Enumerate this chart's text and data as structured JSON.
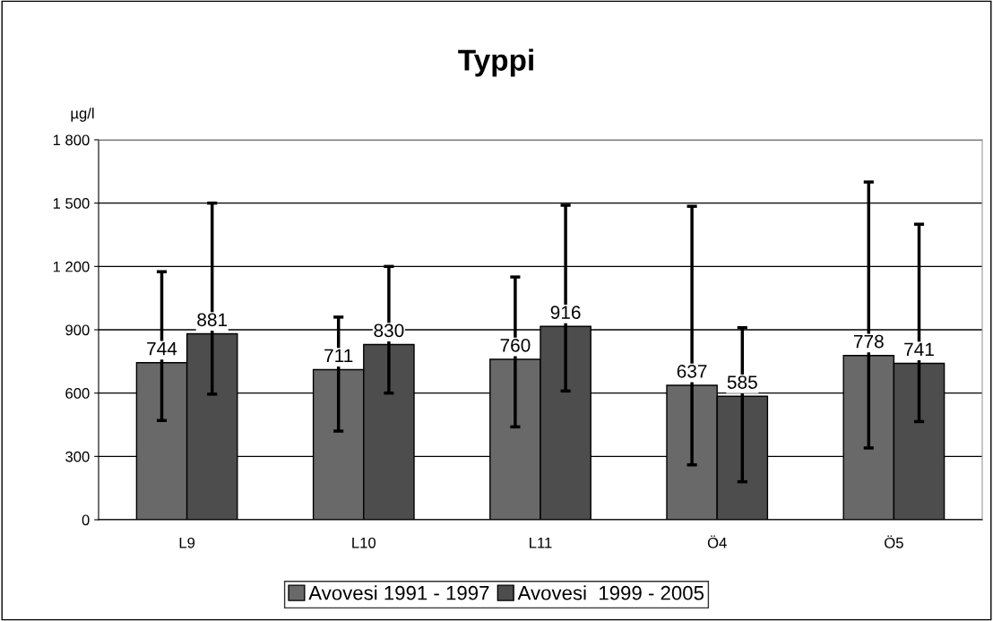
{
  "chart_data": {
    "type": "bar",
    "title": "Typpi",
    "ylabel": "µg/l",
    "categories": [
      "L9",
      "L10",
      "L11",
      "Ö4",
      "Ö5"
    ],
    "series": [
      {
        "name": "Avovesi 1991 - 1997",
        "color": "#696969",
        "values": [
          744,
          711,
          760,
          637,
          778
        ],
        "errors": [
          [
            470,
            1175
          ],
          [
            420,
            960
          ],
          [
            440,
            1150
          ],
          [
            260,
            1485
          ],
          [
            340,
            1600
          ]
        ]
      },
      {
        "name": "Avovesi  1999 - 2005",
        "color": "#4d4d4d",
        "values": [
          881,
          830,
          916,
          585,
          741
        ],
        "errors": [
          [
            595,
            1500
          ],
          [
            600,
            1200
          ],
          [
            610,
            1490
          ],
          [
            180,
            910
          ],
          [
            465,
            1400
          ]
        ]
      }
    ],
    "ylim": [
      0,
      1800
    ],
    "yticks": [
      {
        "value": 0,
        "label": "0"
      },
      {
        "value": 300,
        "label": "300"
      },
      {
        "value": 600,
        "label": "600"
      },
      {
        "value": 900,
        "label": "900"
      },
      {
        "value": 1200,
        "label": "1 200"
      },
      {
        "value": 1500,
        "label": "1 500"
      },
      {
        "value": 1800,
        "label": "1 800"
      }
    ],
    "grid": "y",
    "legend": "bottom",
    "data_labels": true
  }
}
